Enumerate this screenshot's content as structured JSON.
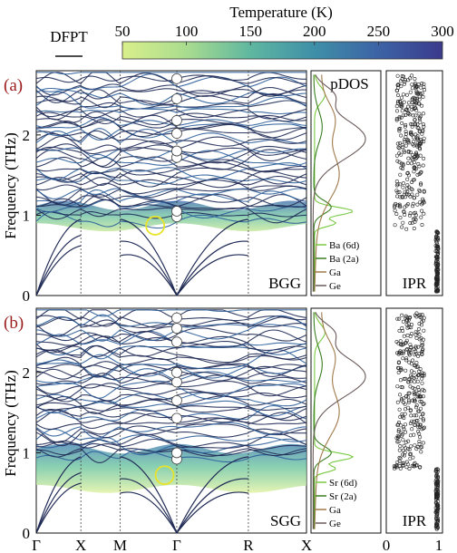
{
  "colorbar": {
    "title": "Temperature (K)",
    "ticks": [
      50,
      100,
      150,
      200,
      250,
      300
    ],
    "range": [
      50,
      300
    ],
    "colors": [
      "#d9ef8b",
      "#8fcf9a",
      "#4fa8a0",
      "#3b7bab",
      "#3c4fa0",
      "#3b3a8c"
    ]
  },
  "legend_dfpt": "DFPT",
  "colors": {
    "panel_label": "#9b1c1c",
    "band_dark": "#1f2a55",
    "highlight_circle": "#e8e32a",
    "pdos_6d": "#7ac943",
    "pdos_2a": "#3a7d22",
    "pdos_ga": "#a07a4a",
    "pdos_ge": "#6b5a5a"
  },
  "chart_data": [
    {
      "type": "line",
      "panel": "(a)",
      "compound": "BGG",
      "ylabel": "Frequency (THz)",
      "ylim": [
        0,
        2.8
      ],
      "yticks": [
        0,
        1,
        2
      ],
      "kpath": [
        "Γ",
        "X",
        "M",
        "Γ",
        "R",
        "X"
      ],
      "gamma_modes_THz": [
        0.98,
        1.05,
        1.72,
        1.8,
        2.02,
        2.18,
        2.45,
        2.7
      ],
      "highlight": {
        "k": "X-M-Γ",
        "freq_THz": 0.87
      },
      "pdos_title": "pDOS",
      "pdos_legend": [
        "Ba (6d)",
        "Ba (2a)",
        "Ga",
        "Ge"
      ],
      "ipr_title": "IPR"
    },
    {
      "type": "line",
      "panel": "(b)",
      "compound": "SGG",
      "ylabel": "Frequency (THz)",
      "ylim": [
        0,
        2.8
      ],
      "yticks": [
        0,
        1,
        2
      ],
      "kpath": [
        "Γ",
        "X",
        "M",
        "Γ",
        "R",
        "X"
      ],
      "gamma_modes_THz": [
        0.92,
        1.0,
        1.43,
        1.65,
        1.88,
        2.0,
        2.38,
        2.55,
        2.68
      ],
      "highlight": {
        "k": "X-M-Γ",
        "freq_THz": 0.72
      },
      "pdos_title": "",
      "pdos_legend": [
        "Sr (6d)",
        "Sr (2a)",
        "Ga",
        "Ge"
      ],
      "ipr_title": "IPR",
      "ipr_ticks": [
        "0",
        "1"
      ]
    }
  ]
}
